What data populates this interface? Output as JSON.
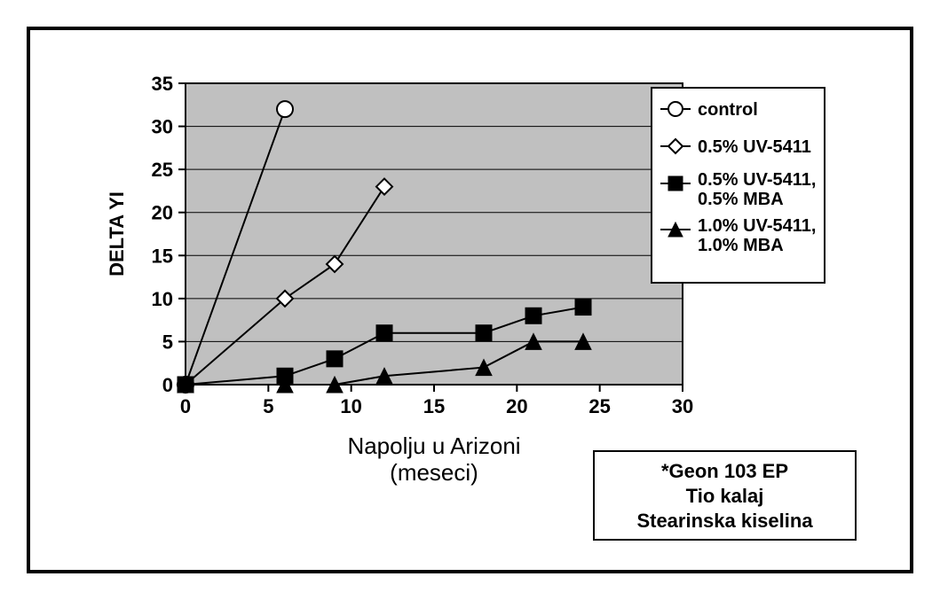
{
  "chart": {
    "type": "line",
    "background_color": "#ffffff",
    "plot_background_color": "#c0c0c0",
    "grid_color": "#000000",
    "axis_color": "#000000",
    "line_width": 2,
    "marker_size": 9,
    "x": {
      "min": 0,
      "max": 30,
      "tick_step": 5,
      "ticks": [
        0,
        5,
        10,
        15,
        20,
        25,
        30
      ],
      "label_line1": "Napolju u Arizoni",
      "label_line2": "(meseci)"
    },
    "y": {
      "min": 0,
      "max": 35,
      "tick_step": 5,
      "ticks": [
        0,
        5,
        10,
        15,
        20,
        25,
        30,
        35
      ],
      "label": "DELTA YI"
    },
    "series": [
      {
        "id": "control",
        "label": "control",
        "marker": "circle-open",
        "color": "#000000",
        "fill": "#ffffff",
        "data": [
          [
            0,
            0
          ],
          [
            6,
            32
          ]
        ]
      },
      {
        "id": "uv5411_05",
        "label": "0.5% UV-5411",
        "marker": "diamond-open",
        "color": "#000000",
        "fill": "#ffffff",
        "data": [
          [
            0,
            0
          ],
          [
            6,
            10
          ],
          [
            9,
            14
          ],
          [
            12,
            23
          ]
        ]
      },
      {
        "id": "uv5411_05_mba_05",
        "label_line1": "0.5% UV-5411,",
        "label_line2": "0.5% MBA",
        "marker": "square-filled",
        "color": "#000000",
        "fill": "#000000",
        "data": [
          [
            0,
            0
          ],
          [
            6,
            1
          ],
          [
            9,
            3
          ],
          [
            12,
            6
          ],
          [
            18,
            6
          ],
          [
            21,
            8
          ],
          [
            24,
            9
          ]
        ]
      },
      {
        "id": "uv5411_10_mba_10",
        "label_line1": "1.0% UV-5411,",
        "label_line2": "1.0% MBA",
        "marker": "triangle-filled",
        "color": "#000000",
        "fill": "#000000",
        "data": [
          [
            0,
            0
          ],
          [
            6,
            0
          ],
          [
            9,
            0
          ],
          [
            12,
            1
          ],
          [
            18,
            2
          ],
          [
            21,
            5
          ],
          [
            24,
            5
          ]
        ]
      }
    ],
    "footnote": {
      "line1": "*Geon 103 EP",
      "line2": "Tio kalaj",
      "line3": "Stearinska kiselina"
    }
  }
}
